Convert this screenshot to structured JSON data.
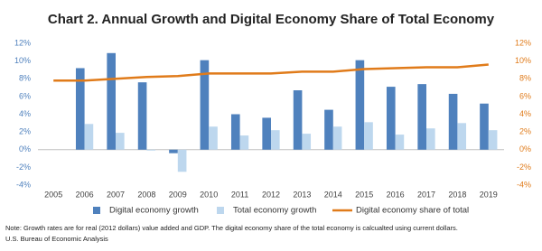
{
  "chart_data": {
    "type": "bar",
    "title": "Chart 2. Annual Growth and Digital Economy Share of Total Economy",
    "categories": [
      "2005",
      "2006",
      "2007",
      "2008",
      "2009",
      "2010",
      "2011",
      "2012",
      "2013",
      "2014",
      "2015",
      "2016",
      "2017",
      "2018",
      "2019"
    ],
    "series": [
      {
        "name": "Digital economy growth",
        "type": "bar",
        "color": "#4f81bd",
        "values": [
          null,
          9.2,
          10.9,
          7.6,
          -0.4,
          10.1,
          4.0,
          3.6,
          6.7,
          4.5,
          10.1,
          7.1,
          7.4,
          6.3,
          5.2
        ]
      },
      {
        "name": "Total economy growth",
        "type": "bar",
        "color": "#bdd7ee",
        "values": [
          null,
          2.9,
          1.9,
          -0.1,
          -2.5,
          2.6,
          1.6,
          2.2,
          1.8,
          2.6,
          3.1,
          1.7,
          2.4,
          3.0,
          2.2
        ]
      },
      {
        "name": "Digital economy share of total",
        "type": "line",
        "axis": "y2",
        "color": "#e07b1a",
        "values": [
          7.8,
          7.8,
          8.0,
          8.2,
          8.3,
          8.6,
          8.6,
          8.6,
          8.8,
          8.8,
          9.1,
          9.2,
          9.3,
          9.3,
          9.6
        ]
      }
    ],
    "ylim": [
      -4,
      12
    ],
    "yticks": [
      {
        "value": -4,
        "label": "-4%"
      },
      {
        "value": -2,
        "label": "-2%"
      },
      {
        "value": 0,
        "label": "0%"
      },
      {
        "value": 2,
        "label": "2%"
      },
      {
        "value": 4,
        "label": "4%"
      },
      {
        "value": 6,
        "label": "6%"
      },
      {
        "value": 8,
        "label": "8%"
      },
      {
        "value": 10,
        "label": "10%"
      },
      {
        "value": 12,
        "label": "12%"
      }
    ],
    "y2lim": [
      -4,
      12
    ],
    "y2ticks": [
      {
        "value": -4,
        "label": "-4%"
      },
      {
        "value": -2,
        "label": "-2%"
      },
      {
        "value": 0,
        "label": "0%"
      },
      {
        "value": 2,
        "label": "2%"
      },
      {
        "value": 4,
        "label": "4%"
      },
      {
        "value": 6,
        "label": "6%"
      },
      {
        "value": 8,
        "label": "8%"
      },
      {
        "value": 10,
        "label": "10%"
      },
      {
        "value": 12,
        "label": "12%"
      }
    ],
    "ytick_color": "#4f81bd",
    "y2tick_color": "#e07b1a",
    "legend": "bottom",
    "notes": [
      "Note: Growth rates are for real (2012 dollars) value added and GDP. The digital economy share of the total economy is calcualted using current dollars.",
      "U.S. Bureau of Economic Analysis"
    ]
  }
}
